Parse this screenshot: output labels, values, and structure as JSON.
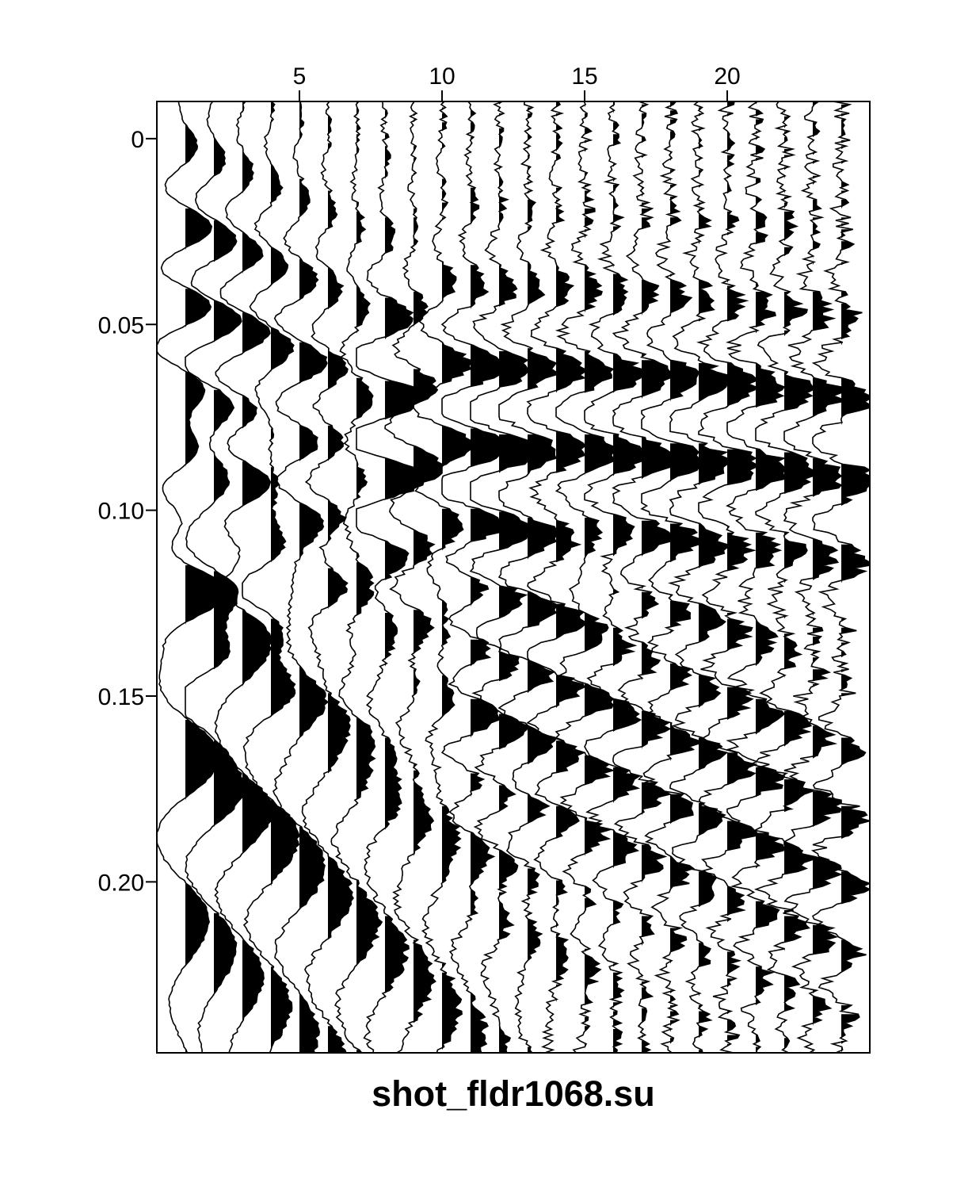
{
  "chart_data": {
    "type": "seismic-wiggle",
    "title": "shot_fldr1068.su",
    "trace_count": 24,
    "x_axis": {
      "position": "top",
      "range": [
        0,
        25
      ],
      "ticks": [
        5,
        10,
        15,
        20
      ],
      "tick_labels": [
        "5",
        "10",
        "15",
        "20"
      ]
    },
    "y_axis": {
      "range": [
        -0.01,
        0.246
      ],
      "ticks": [
        0,
        0.05,
        0.1,
        0.15,
        0.2
      ],
      "tick_labels": [
        "0",
        "0.05",
        "0.10",
        "0.15",
        "0.20"
      ],
      "reversed": true
    },
    "fill": "positive-black",
    "colors": {
      "trace": "#000000",
      "background": "#ffffff"
    }
  }
}
